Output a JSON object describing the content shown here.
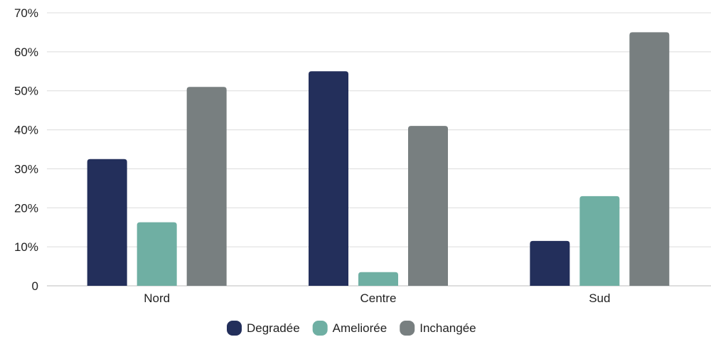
{
  "chart_data": {
    "type": "bar",
    "categories": [
      "Nord",
      "Centre",
      "Sud"
    ],
    "series": [
      {
        "name": "Degradée",
        "color": "#232f5b",
        "values": [
          32.5,
          55,
          11.5
        ]
      },
      {
        "name": "Ameliorée",
        "color": "#6fafa3",
        "values": [
          16.3,
          3.5,
          23
        ]
      },
      {
        "name": "Inchangée",
        "color": "#787f80",
        "values": [
          51,
          41,
          65
        ]
      }
    ],
    "ylim": [
      0,
      70
    ],
    "yticks": [
      {
        "value": 0,
        "label": "0"
      },
      {
        "value": 10,
        "label": "10%"
      },
      {
        "value": 20,
        "label": "20%"
      },
      {
        "value": 30,
        "label": "30%"
      },
      {
        "value": 40,
        "label": "40%"
      },
      {
        "value": 50,
        "label": "50%"
      },
      {
        "value": 60,
        "label": "60%"
      },
      {
        "value": 70,
        "label": "70%"
      }
    ],
    "grid": true,
    "legend": "bottom-center",
    "title": "",
    "xlabel": "",
    "ylabel": ""
  }
}
